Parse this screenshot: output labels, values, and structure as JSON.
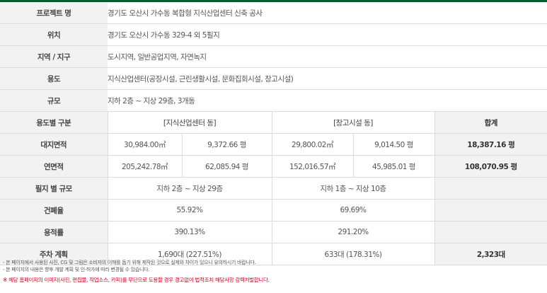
{
  "rows": {
    "project_name": {
      "label": "프로젝트 명",
      "value": "경기도 오산시 가수동 복합형 지식산업센터 신축 공사"
    },
    "location": {
      "label": "위치",
      "value": "경기도 오산시 가수동 329-4 외 5필지"
    },
    "zone": {
      "label": "지역 / 지구",
      "value": "도시지역, 일반공업지역, 자연녹지"
    },
    "use": {
      "label": "용도",
      "value": "지식산업센터(공장시설, 근린생활시설, 문화집회시설, 창고시설)"
    },
    "scale": {
      "label": "규모",
      "value": "지하 2층 ~ 지상 29층, 3개동"
    }
  },
  "breakdown": {
    "header": {
      "label": "용도별 구분",
      "group1": "[지식산업센터 동]",
      "group2": "[창고시설 동]",
      "total": "합계"
    },
    "land_area": {
      "label": "대지면적",
      "g1_m2": "30,984.00㎡",
      "g1_py": "9,372.66 평",
      "g2_m2": "29,800.02㎡",
      "g2_py": "9,014.50 평",
      "total": "18,387.16 평"
    },
    "floor_area": {
      "label": "연면적",
      "g1_m2": "205,242.78㎡",
      "g1_py": "62,085.94 평",
      "g2_m2": "152,016.57㎡",
      "g2_py": "45,985.01 평",
      "total": "108,070.95 평"
    },
    "floors": {
      "label": "필지 별 규모",
      "g1": "지하 2층 ~ 지상 29층",
      "g2": "지하 1층 ~ 지상 10층",
      "total": ""
    },
    "coverage": {
      "label": "건폐율",
      "g1": "55.92%",
      "g2": "69.69%",
      "total": ""
    },
    "far": {
      "label": "용적률",
      "g1": "390.13%",
      "g2": "291.20%",
      "total": ""
    },
    "parking": {
      "label": "주차 계획",
      "g1": "1,690대 (227.51%)",
      "g2": "633대 (178.31%)",
      "total": "2,323대"
    }
  },
  "notes": [
    "- 본 페이지에서 사용된 사진, CG 및 그림은 소비자의 이해를 돕기 위해 제작된 것으로 실제와 차이가 있으니 유의하시기 바랍니다.",
    "- 본 페이지의 내용은 향후 개발 계획 및 인·허가에 따라 변경될 수 있습니다."
  ],
  "warning": "※ 해당 홈페이지의 이미지(사진, 편집물, 작업소스, 카피)를 무단으로 도용할 경우 경고없이 법적조치 해당사항 강력처벌합니다.",
  "colors": {
    "accent_line": "#0b5b2c",
    "header_bg": "#f2f2f2",
    "warning": "#d0021b"
  }
}
